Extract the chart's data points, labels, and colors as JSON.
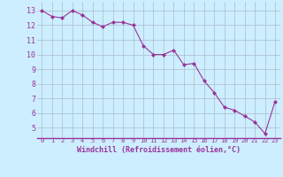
{
  "x": [
    0,
    1,
    2,
    3,
    4,
    5,
    6,
    7,
    8,
    9,
    10,
    11,
    12,
    13,
    14,
    15,
    16,
    17,
    18,
    19,
    20,
    21,
    22,
    23
  ],
  "y": [
    13.0,
    12.6,
    12.5,
    13.0,
    12.7,
    12.2,
    11.9,
    12.2,
    12.2,
    12.0,
    10.6,
    10.0,
    10.0,
    10.3,
    9.3,
    9.4,
    8.2,
    7.4,
    6.4,
    6.2,
    5.8,
    5.4,
    4.6,
    6.8
  ],
  "line_color": "#993399",
  "marker": "D",
  "marker_size": 2,
  "bg_color": "#cceeff",
  "grid_color": "#aabbcc",
  "xlabel": "Windchill (Refroidissement éolien,°C)",
  "xlabel_color": "#993399",
  "tick_color": "#993399",
  "ylabel_ticks": [
    5,
    6,
    7,
    8,
    9,
    10,
    11,
    12,
    13
  ],
  "ylim": [
    4.3,
    13.6
  ],
  "xlim": [
    -0.5,
    23.5
  ],
  "xtick_fontsize": 5.0,
  "ytick_fontsize": 6.0,
  "xlabel_fontsize": 6.0
}
